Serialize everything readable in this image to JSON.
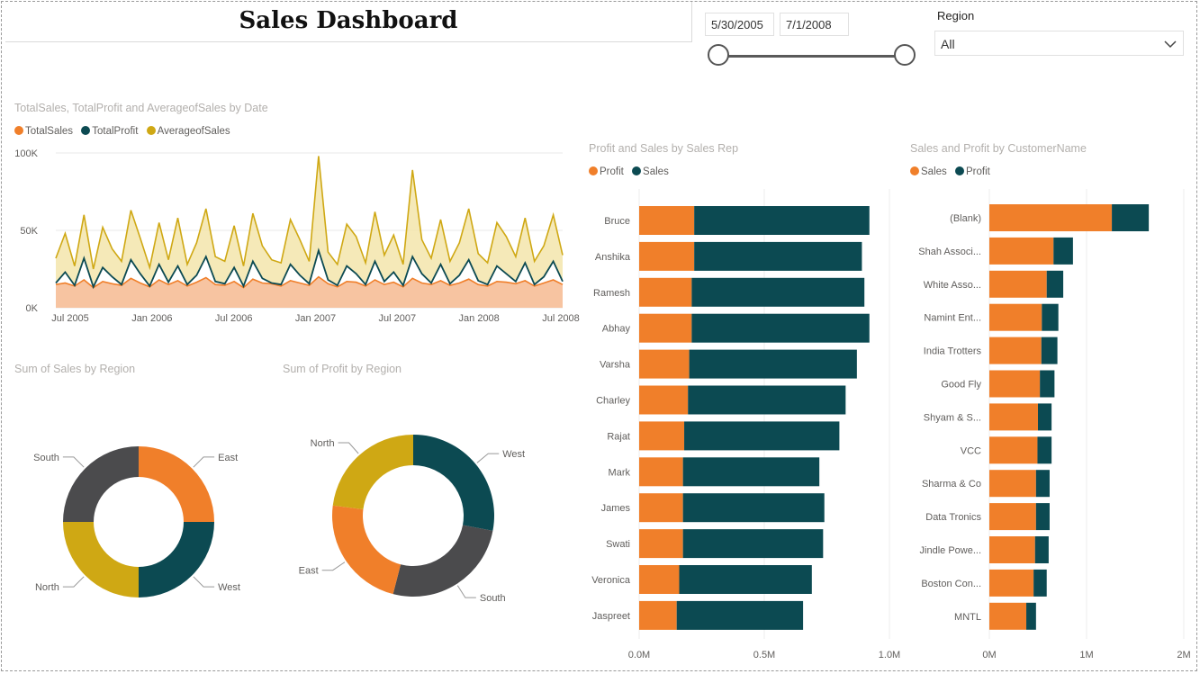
{
  "header": {
    "title": "Sales Dashboard"
  },
  "filters": {
    "date_start": "5/30/2005",
    "date_end": "7/1/2008",
    "region_label": "Region",
    "region_value": "All"
  },
  "colors": {
    "orange": "#f07f2a",
    "teal": "#0c4a52",
    "gold": "#cfa814",
    "gray": "#4b4b4d",
    "sales_fill": "#f7c4a1"
  },
  "chart_data": [
    {
      "id": "line",
      "type": "line",
      "title": "TotalSales, TotalProfit and AverageofSales by Date",
      "legend": [
        "TotalSales",
        "TotalProfit",
        "AverageofSales"
      ],
      "legend_position": "top-left",
      "x_ticks": [
        "Jul 2005",
        "Jan 2006",
        "Jul 2006",
        "Jan 2007",
        "Jul 2007",
        "Jan 2008",
        "Jul 2008"
      ],
      "y_ticks": [
        "0K",
        "50K",
        "100K"
      ],
      "ylim": [
        0,
        100000
      ],
      "grid": true,
      "series": [
        {
          "name": "TotalSales",
          "values": [
            15000,
            16000,
            14000,
            18000,
            13000,
            17000,
            15500,
            14500,
            19000,
            16000,
            13500,
            18000,
            15000,
            17500,
            14000,
            16500,
            19500,
            15000,
            14500,
            17000,
            13000,
            18500,
            16000,
            15500,
            14000,
            17500,
            16000,
            14500,
            20000,
            15500,
            13500,
            17000,
            16500,
            14000,
            18000,
            15000,
            16500,
            13500,
            19000,
            16000,
            15000,
            17500,
            14500,
            16000,
            18500,
            15000,
            14000,
            17000,
            16500,
            15500,
            17500,
            14000,
            16000,
            18000,
            15000
          ]
        },
        {
          "name": "TotalProfit",
          "values": [
            16000,
            23000,
            14500,
            32000,
            13500,
            26000,
            20000,
            15000,
            31000,
            22000,
            14000,
            28000,
            16500,
            27000,
            15000,
            21000,
            33000,
            17000,
            15500,
            26000,
            14000,
            30000,
            19000,
            16000,
            15000,
            28000,
            21000,
            15500,
            37000,
            18000,
            14500,
            27000,
            22000,
            15000,
            30000,
            17000,
            23000,
            14500,
            33000,
            22000,
            16000,
            28000,
            15500,
            21000,
            31000,
            17500,
            15000,
            27000,
            22000,
            17000,
            29000,
            15000,
            20000,
            30000,
            17000
          ]
        },
        {
          "name": "AverageofSales",
          "values": [
            32000,
            48000,
            27000,
            60000,
            25000,
            52000,
            38000,
            30000,
            63000,
            45000,
            26000,
            55000,
            31000,
            58000,
            28000,
            42000,
            64000,
            33000,
            30000,
            53000,
            27000,
            61000,
            40000,
            31000,
            29000,
            57000,
            44000,
            30000,
            98000,
            36000,
            28000,
            54000,
            46000,
            29000,
            62000,
            34000,
            47000,
            28000,
            89000,
            44000,
            32000,
            57000,
            30000,
            42000,
            64000,
            35000,
            29000,
            55000,
            46000,
            33000,
            58000,
            30000,
            40000,
            60000,
            34000
          ]
        }
      ]
    },
    {
      "id": "donut_sales",
      "type": "pie",
      "title": "Sum of Sales by Region",
      "categories": [
        "East",
        "West",
        "North",
        "South"
      ],
      "values": [
        25,
        25,
        25,
        25
      ]
    },
    {
      "id": "donut_profit",
      "type": "pie",
      "title": "Sum of Profit by Region",
      "categories": [
        "West",
        "South",
        "East",
        "North"
      ],
      "values": [
        28,
        26,
        23,
        23
      ]
    },
    {
      "id": "bar_rep",
      "type": "bar",
      "title": "Profit and Sales by Sales Rep",
      "legend": [
        "Profit",
        "Sales"
      ],
      "categories": [
        "Bruce",
        "Anshika",
        "Ramesh",
        "Abhay",
        "Varsha",
        "Charley",
        "Rajat",
        "Mark",
        "James",
        "Swati",
        "Veronica",
        "Jaspreet"
      ],
      "series": [
        {
          "name": "Profit",
          "values": [
            0.22,
            0.22,
            0.21,
            0.21,
            0.2,
            0.195,
            0.18,
            0.175,
            0.175,
            0.175,
            0.16,
            0.15
          ]
        },
        {
          "name": "Sales",
          "values": [
            0.7,
            0.67,
            0.69,
            0.71,
            0.67,
            0.63,
            0.62,
            0.545,
            0.565,
            0.56,
            0.53,
            0.505
          ]
        }
      ],
      "x_ticks": [
        "0.0M",
        "0.5M",
        "1.0M"
      ],
      "xlim": [
        0,
        1.0
      ]
    },
    {
      "id": "bar_customer",
      "type": "bar",
      "title": "Sales and Profit by CustomerName",
      "legend": [
        "Sales",
        "Profit"
      ],
      "categories": [
        "(Blank)",
        "Shah Associ...",
        "White Asso...",
        "Namint Ent...",
        "India Trotters",
        "Good Fly",
        "Shyam & S...",
        "VCC",
        "Sharma & Co",
        "Data Tronics",
        "Jindle Powe...",
        "Boston Con...",
        "MNTL"
      ],
      "series": [
        {
          "name": "Sales",
          "values": [
            1.26,
            0.66,
            0.59,
            0.54,
            0.535,
            0.52,
            0.5,
            0.495,
            0.48,
            0.48,
            0.47,
            0.455,
            0.38
          ]
        },
        {
          "name": "Profit",
          "values": [
            0.38,
            0.2,
            0.17,
            0.17,
            0.165,
            0.15,
            0.14,
            0.145,
            0.14,
            0.14,
            0.14,
            0.135,
            0.1
          ]
        }
      ],
      "x_ticks": [
        "0M",
        "1M",
        "2M"
      ],
      "xlim": [
        0,
        2
      ]
    }
  ]
}
